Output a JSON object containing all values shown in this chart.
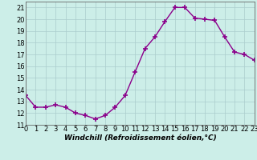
{
  "x": [
    0,
    1,
    2,
    3,
    4,
    5,
    6,
    7,
    8,
    9,
    10,
    11,
    12,
    13,
    14,
    15,
    16,
    17,
    18,
    19,
    20,
    21,
    22,
    23
  ],
  "y": [
    13.5,
    12.5,
    12.5,
    12.7,
    12.5,
    12.0,
    11.8,
    11.5,
    11.8,
    12.5,
    13.5,
    15.5,
    17.5,
    18.5,
    19.8,
    21.0,
    21.0,
    20.1,
    20.0,
    19.9,
    18.5,
    17.2,
    17.0,
    16.5
  ],
  "line_color": "#8B008B",
  "marker": "+",
  "marker_size": 4,
  "marker_linewidth": 1.2,
  "bg_color": "#cceee8",
  "grid_color": "#aacccc",
  "xlabel": "Windchill (Refroidissement éolien,°C)",
  "xlim": [
    0,
    23
  ],
  "ylim": [
    11,
    21.5
  ],
  "yticks": [
    11,
    12,
    13,
    14,
    15,
    16,
    17,
    18,
    19,
    20,
    21
  ],
  "xticks": [
    0,
    1,
    2,
    3,
    4,
    5,
    6,
    7,
    8,
    9,
    10,
    11,
    12,
    13,
    14,
    15,
    16,
    17,
    18,
    19,
    20,
    21,
    22,
    23
  ],
  "xlabel_fontsize": 6.5,
  "tick_fontsize": 6,
  "line_width": 1.0
}
